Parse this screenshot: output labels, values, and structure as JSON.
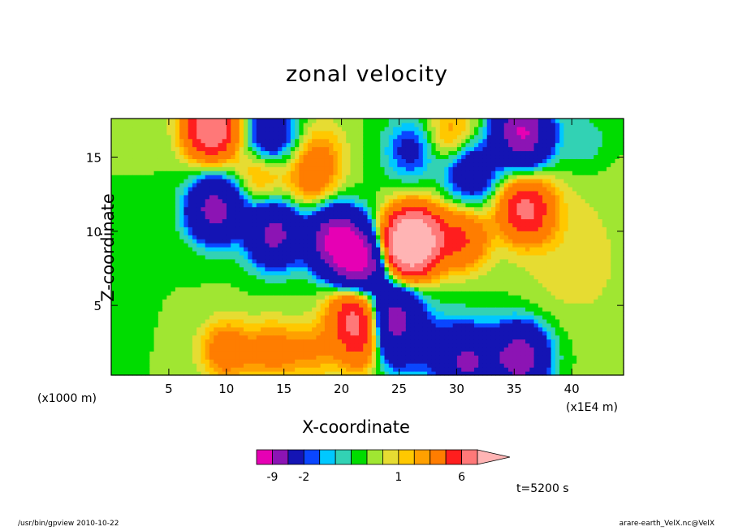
{
  "chart_data": {
    "type": "heatmap",
    "title": "zonal velocity",
    "xlabel": "X-coordinate",
    "ylabel": "Z-coordinate",
    "x_unit_left": "(x1000 m)",
    "x_unit_right": "(x1E4 m)",
    "xlim": [
      0,
      44.5
    ],
    "ylim": [
      0.3,
      17.6
    ],
    "x_ticks": [
      5,
      10,
      15,
      20,
      25,
      30,
      35,
      40
    ],
    "y_ticks": [
      5,
      10,
      15
    ],
    "x_tick_labels": [
      "5",
      "10",
      "15",
      "20",
      "25",
      "30",
      "35",
      "40"
    ],
    "y_tick_labels": [
      "5",
      "10",
      "15"
    ],
    "colorbar": {
      "levels": [
        -12,
        -9,
        -6,
        -2,
        -1.5,
        -1,
        -0.5,
        0,
        0.5,
        1,
        1.5,
        2,
        4,
        6,
        9,
        12
      ],
      "colors": [
        "#e600b4",
        "#8c14b4",
        "#1414b4",
        "#0a46ff",
        "#00c8ff",
        "#32d2b4",
        "#00dc00",
        "#a0e632",
        "#e6dc32",
        "#ffc800",
        "#ffa000",
        "#ff7d00",
        "#ff1e1e",
        "#ff7878",
        "#ffb4b4"
      ],
      "tick_labels": [
        "-9",
        "-2",
        "1",
        "6"
      ],
      "tick_values": [
        -9,
        -2,
        1,
        6
      ]
    },
    "time_label": "t=5200 s",
    "features": [
      {
        "x": 9,
        "z": 11.5,
        "value": -7.5
      },
      {
        "x": 14.2,
        "z": 9.8,
        "value": -7
      },
      {
        "x": 19.5,
        "z": 9.5,
        "value": -9.5
      },
      {
        "x": 21.6,
        "z": 8,
        "value": -10
      },
      {
        "x": 25.5,
        "z": 9.0,
        "value": 8
      },
      {
        "x": 26.5,
        "z": 9.5,
        "value": 10
      },
      {
        "x": 30.5,
        "z": 9.5,
        "value": 4
      },
      {
        "x": 36,
        "z": 11.5,
        "value": 6.5
      },
      {
        "x": 8.7,
        "z": 17.0,
        "value": 9
      },
      {
        "x": 13.8,
        "z": 16.5,
        "value": -4
      },
      {
        "x": 35.6,
        "z": 17.0,
        "value": -7
      },
      {
        "x": 36,
        "z": 16.0,
        "value": -3
      },
      {
        "x": 41,
        "z": 16.0,
        "value": -1
      },
      {
        "x": 31.3,
        "z": 14.0,
        "value": -4
      },
      {
        "x": 13.0,
        "z": 14.0,
        "value": 2
      },
      {
        "x": 17.5,
        "z": 13.5,
        "value": 2.5
      },
      {
        "x": 10,
        "z": 2,
        "value": 3
      },
      {
        "x": 14,
        "z": 2,
        "value": 2.5
      },
      {
        "x": 17.5,
        "z": 2,
        "value": 2
      },
      {
        "x": 22,
        "z": 2.5,
        "value": 5
      },
      {
        "x": 21.2,
        "z": 4.5,
        "value": 6
      },
      {
        "x": 24,
        "z": 2.5,
        "value": -4
      },
      {
        "x": 24.5,
        "z": 4.5,
        "value": -6
      },
      {
        "x": 28,
        "z": 2,
        "value": -1.5
      },
      {
        "x": 31,
        "z": 1.2,
        "value": -6
      },
      {
        "x": 35.5,
        "z": 1.5,
        "value": -8
      },
      {
        "x": 26,
        "z": 15.5,
        "value": -2.5
      },
      {
        "x": 18.2,
        "z": 15.5,
        "value": 1.5
      },
      {
        "x": 29.5,
        "z": 16.5,
        "value": 2
      }
    ]
  },
  "footer": {
    "left": "/usr/bin/gpview   2010-10-22",
    "right": "arare-earth_VelX.nc@VelX"
  }
}
